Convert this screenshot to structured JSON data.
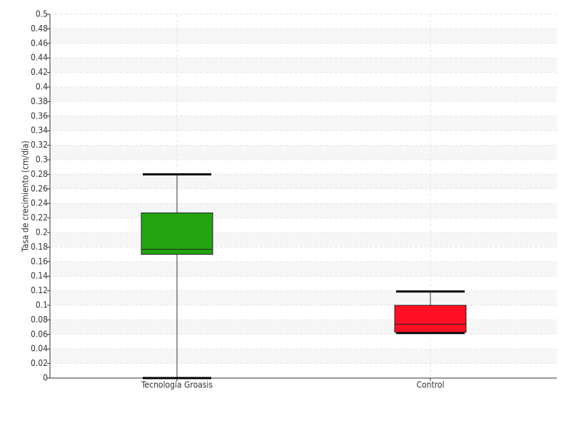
{
  "chart_data": {
    "type": "box",
    "y_label": "Tasa de crecimiento (cm/día)",
    "categories": [
      "Tecnología Groasis",
      "Control"
    ],
    "boxes": [
      {
        "min": 0,
        "q1": 0.17,
        "median": 0.177,
        "q3": 0.227,
        "max": 0.28,
        "color": "#22a511"
      },
      {
        "min": 0.062,
        "q1": 0.063,
        "median": 0.074,
        "q3": 0.1,
        "max": 0.119,
        "color": "#ff0f23"
      }
    ],
    "ylim": [
      0,
      0.5
    ],
    "yticks": [
      0,
      0.02,
      0.04,
      0.06,
      0.08,
      0.1,
      0.12,
      0.14,
      0.16,
      0.18,
      0.2,
      0.22,
      0.24,
      0.26,
      0.28,
      0.3,
      0.32,
      0.34,
      0.36,
      0.38,
      0.4,
      0.42,
      0.44,
      0.46,
      0.48,
      0.5
    ],
    "grid": true
  }
}
